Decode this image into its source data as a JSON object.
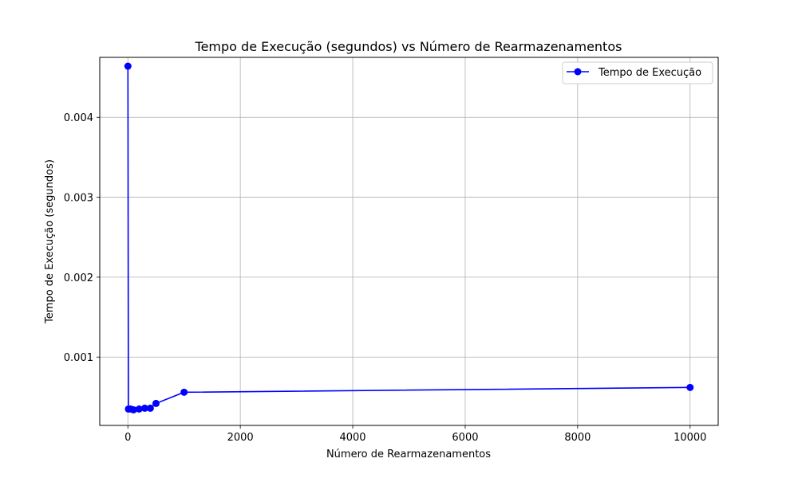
{
  "chart_data": {
    "type": "line",
    "title": "Tempo de Execução (segundos) vs Número de Rearmazenamentos",
    "xlabel": "Número de Rearmazenamentos",
    "ylabel": "Tempo de Execução (segundos)",
    "xlim": [
      -500,
      10500
    ],
    "ylim": [
      0.000145,
      0.00475
    ],
    "xticks": [
      0,
      2000,
      4000,
      6000,
      8000,
      10000
    ],
    "xtick_labels": [
      "0",
      "2000",
      "4000",
      "6000",
      "8000",
      "10000"
    ],
    "yticks": [
      0.001,
      0.002,
      0.003,
      0.004
    ],
    "ytick_labels": [
      "0.001",
      "0.002",
      "0.003",
      "0.004"
    ],
    "grid": true,
    "legend_position": "top-right",
    "series": [
      {
        "name": "Tempo de Execução",
        "color": "#0000ff",
        "marker": "circle",
        "x": [
          1,
          10,
          50,
          100,
          200,
          300,
          400,
          500,
          1000,
          10000
        ],
        "y": [
          0.00464,
          0.00035,
          0.00035,
          0.00034,
          0.00035,
          0.00036,
          0.00036,
          0.00042,
          0.00056,
          0.00062
        ]
      }
    ]
  }
}
